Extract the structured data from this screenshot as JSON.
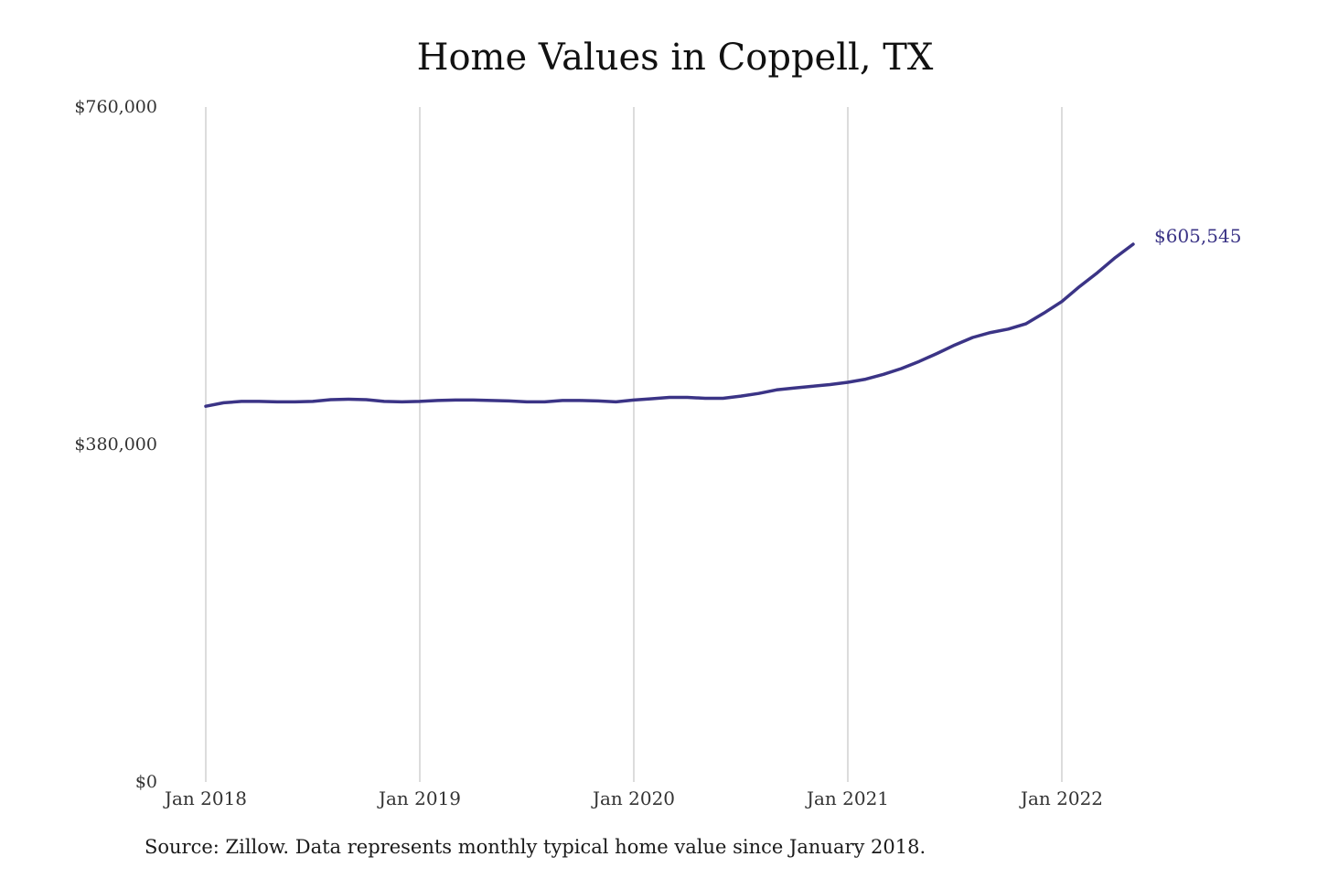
{
  "chart_data": {
    "type": "line",
    "title": "Home Values in Coppell, TX",
    "xlabel": "",
    "ylabel": "",
    "ylim": [
      0,
      760000
    ],
    "xlim": [
      "2018-01",
      "2022-06"
    ],
    "y_ticks": [
      {
        "value": 0,
        "label": "$0"
      },
      {
        "value": 380000,
        "label": "$380,000"
      },
      {
        "value": 760000,
        "label": "$760,000"
      }
    ],
    "x_ticks": [
      {
        "value": "2018-01",
        "label": "Jan 2018"
      },
      {
        "value": "2019-01",
        "label": "Jan 2019"
      },
      {
        "value": "2020-01",
        "label": "Jan 2020"
      },
      {
        "value": "2021-01",
        "label": "Jan 2021"
      },
      {
        "value": "2022-01",
        "label": "Jan 2022"
      }
    ],
    "grid": {
      "vertical": true,
      "horizontal": false
    },
    "line_color": "#3b3486",
    "series": [
      {
        "x": [
          "2018-01",
          "2018-02",
          "2018-03",
          "2018-04",
          "2018-05",
          "2018-06",
          "2018-07",
          "2018-08",
          "2018-09",
          "2018-10",
          "2018-11",
          "2018-12",
          "2019-01",
          "2019-02",
          "2019-03",
          "2019-04",
          "2019-05",
          "2019-06",
          "2019-07",
          "2019-08",
          "2019-09",
          "2019-10",
          "2019-11",
          "2019-12",
          "2020-01",
          "2020-02",
          "2020-03",
          "2020-04",
          "2020-05",
          "2020-06",
          "2020-07",
          "2020-08",
          "2020-09",
          "2020-10",
          "2020-11",
          "2020-12",
          "2021-01",
          "2021-02",
          "2021-03",
          "2021-04",
          "2021-05",
          "2021-06",
          "2021-07",
          "2021-08",
          "2021-09",
          "2021-10",
          "2021-11",
          "2021-12",
          "2022-01",
          "2022-02",
          "2022-03",
          "2022-04",
          "2022-05"
        ],
        "values": [
          423000,
          427000,
          428500,
          428500,
          428000,
          428000,
          428500,
          430500,
          431000,
          430500,
          428500,
          428000,
          428500,
          429500,
          430000,
          430000,
          429500,
          429000,
          428000,
          428000,
          429500,
          429500,
          429000,
          428000,
          430000,
          431500,
          433000,
          433000,
          432000,
          432000,
          434500,
          437500,
          441500,
          443500,
          445500,
          447500,
          450000,
          453500,
          459000,
          465500,
          473500,
          482500,
          492000,
          500500,
          506000,
          510000,
          516000,
          528000,
          541000,
          558000,
          573500,
          590500,
          605545
        ]
      }
    ],
    "annotations": [
      {
        "x": "2022-05",
        "y": 605545,
        "text": "$605,545"
      }
    ],
    "source": "Source: Zillow. Data represents monthly typical home value since January 2018."
  }
}
